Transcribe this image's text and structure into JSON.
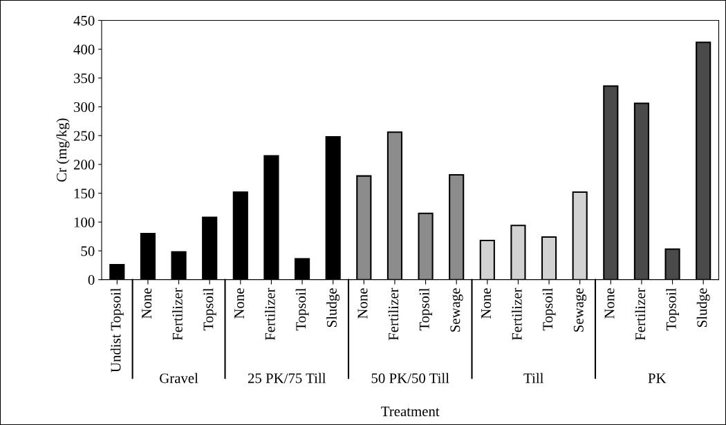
{
  "chart_data": {
    "type": "bar",
    "xlabel": "Treatment",
    "ylabel": "Cr (mg/kg)",
    "categories": [
      "Undist Topsoil",
      "None",
      "Fertilizer",
      "Topsoil",
      "None",
      "Fertilizer",
      "Topsoil",
      "Sludge",
      "None",
      "Fertilizer",
      "Topsoil",
      "Sewage",
      "None",
      "Fertilizer",
      "Topsoil",
      "Sewage",
      "None",
      "Fertilizer",
      "Topsoil",
      "Sludge"
    ],
    "annotations": [
      "Gravel",
      "25 PK/75 Till",
      "50 PK/50 Till",
      "Till",
      "PK"
    ],
    "series": [
      {
        "color": "#000000",
        "values": [
          26,
          null,
          null,
          null,
          null,
          null,
          null,
          null,
          null,
          null,
          null,
          null,
          null,
          null,
          null,
          null,
          null,
          null,
          null,
          null
        ]
      },
      {
        "color": "#000000",
        "values": [
          null,
          80,
          48,
          108,
          null,
          null,
          null,
          null,
          null,
          null,
          null,
          null,
          null,
          null,
          null,
          null,
          null,
          null,
          null,
          null
        ]
      },
      {
        "color": "#000000",
        "values": [
          null,
          null,
          null,
          null,
          152,
          215,
          36,
          248,
          null,
          null,
          null,
          null,
          null,
          null,
          null,
          null,
          null,
          null,
          null,
          null
        ]
      },
      {
        "color": "#8c8c8c",
        "values": [
          null,
          null,
          null,
          null,
          null,
          null,
          null,
          null,
          180,
          256,
          115,
          182,
          null,
          null,
          null,
          null,
          null,
          null,
          null,
          null
        ]
      },
      {
        "color": "#d2d2d2",
        "values": [
          null,
          null,
          null,
          null,
          null,
          null,
          null,
          null,
          null,
          null,
          null,
          null,
          68,
          94,
          74,
          152,
          null,
          null,
          null,
          null
        ]
      },
      {
        "color": "#4a4a4a",
        "values": [
          null,
          null,
          null,
          null,
          null,
          null,
          null,
          null,
          null,
          null,
          null,
          null,
          null,
          null,
          null,
          null,
          336,
          306,
          53,
          412
        ]
      }
    ],
    "ylim": [
      0,
      450
    ],
    "yticks": [
      0,
      50,
      100,
      150,
      200,
      250,
      300,
      350,
      400,
      450
    ],
    "grid": false,
    "legend": false
  }
}
